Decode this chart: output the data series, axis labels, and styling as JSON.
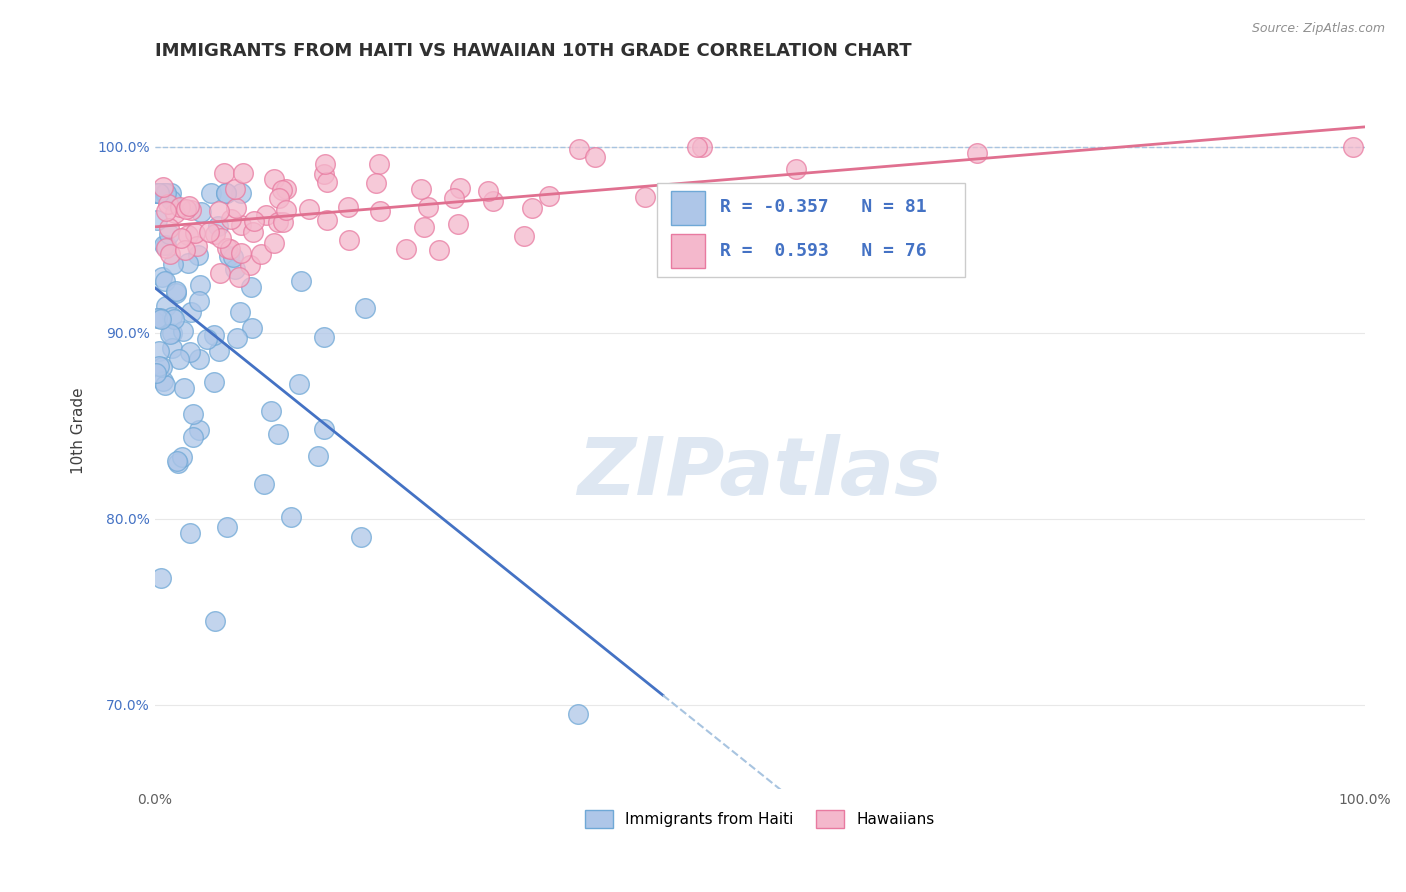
{
  "title": "IMMIGRANTS FROM HAITI VS HAWAIIAN 10TH GRADE CORRELATION CHART",
  "ylabel": "10th Grade",
  "source_text": "Source: ZipAtlas.com",
  "x_min": 0.0,
  "x_max": 1.0,
  "y_min": 0.655,
  "y_max": 1.04,
  "y_ticks": [
    0.7,
    0.8,
    0.9,
    1.0
  ],
  "y_tick_labels": [
    "70.0%",
    "80.0%",
    "90.0%",
    "100.0%"
  ],
  "blue_color": "#aec6e8",
  "blue_edge": "#6fa8d6",
  "pink_color": "#f4b8cc",
  "pink_edge": "#e87aa0",
  "blue_line_color": "#4472c4",
  "pink_line_color": "#e07090",
  "dashed_line_color": "#a8c4e0",
  "legend_label_blue": "Immigrants from Haiti",
  "legend_label_pink": "Hawaiians",
  "title_color": "#303030",
  "title_fontsize": 13,
  "axis_label_fontsize": 11,
  "tick_fontsize": 10,
  "watermark_text": "ZIPatlas",
  "watermark_color": "#c8d8ea",
  "blue_R": -0.357,
  "blue_N": 81,
  "pink_R": 0.593,
  "pink_N": 76,
  "legend_blue_text": "R = -0.357   N = 81",
  "legend_pink_text": "R =  0.593   N = 76"
}
